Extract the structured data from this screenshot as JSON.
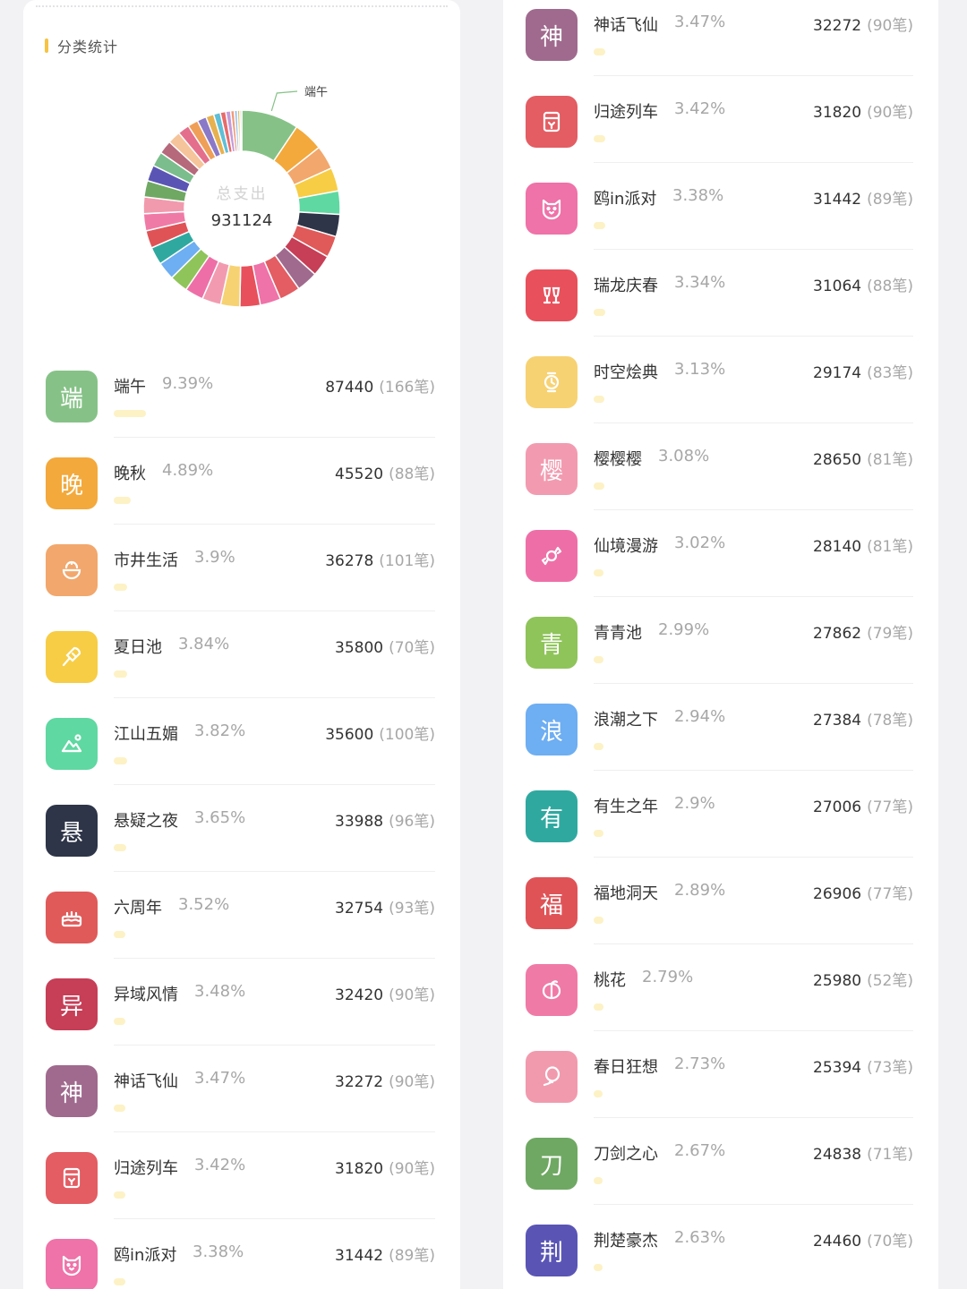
{
  "header": {
    "title": "分类统计",
    "accent_color": "#f6c343"
  },
  "donut": {
    "center_label": "总支出",
    "center_value": "931124",
    "callout_label": "端午"
  },
  "chart_data": {
    "type": "pie",
    "title": "",
    "total": 931124,
    "slices": [
      {
        "name": "端午",
        "pct": 9.39,
        "color": "#86c287"
      },
      {
        "name": "晚秋",
        "pct": 4.89,
        "color": "#f3a93b"
      },
      {
        "name": "市井生活",
        "pct": 3.9,
        "color": "#f2a76c"
      },
      {
        "name": "夏日池",
        "pct": 3.84,
        "color": "#f7cd45"
      },
      {
        "name": "江山五媚",
        "pct": 3.82,
        "color": "#5fd8a2"
      },
      {
        "name": "悬疑之夜",
        "pct": 3.65,
        "color": "#2e3548"
      },
      {
        "name": "六周年",
        "pct": 3.52,
        "color": "#e05a5a"
      },
      {
        "name": "异域风情",
        "pct": 3.48,
        "color": "#c73e57"
      },
      {
        "name": "神话飞仙",
        "pct": 3.47,
        "color": "#a06a8e"
      },
      {
        "name": "归途列车",
        "pct": 3.42,
        "color": "#e35d63"
      },
      {
        "name": "鸥in派对",
        "pct": 3.38,
        "color": "#ef72a8"
      },
      {
        "name": "瑞龙庆春",
        "pct": 3.34,
        "color": "#e8505b"
      },
      {
        "name": "时空烩典",
        "pct": 3.13,
        "color": "#f7d273"
      },
      {
        "name": "樱樱樱",
        "pct": 3.08,
        "color": "#f29bb0"
      },
      {
        "name": "仙境漫游",
        "pct": 3.02,
        "color": "#ee6fa7"
      },
      {
        "name": "青青池",
        "pct": 2.99,
        "color": "#8fc45a"
      },
      {
        "name": "浪潮之下",
        "pct": 2.94,
        "color": "#6eaef2"
      },
      {
        "name": "有生之年",
        "pct": 2.9,
        "color": "#2fa9a0"
      },
      {
        "name": "福地洞天",
        "pct": 2.89,
        "color": "#df5357"
      },
      {
        "name": "桃花",
        "pct": 2.79,
        "color": "#f07aa6"
      },
      {
        "name": "春日狂想",
        "pct": 2.73,
        "color": "#f19aae"
      },
      {
        "name": "刀剑之心",
        "pct": 2.67,
        "color": "#6fa863"
      },
      {
        "name": "荆楚豪杰",
        "pct": 2.63,
        "color": "#5a55b5"
      },
      {
        "name": "",
        "pct": 2.4,
        "color": "#7bbd8c"
      },
      {
        "name": "",
        "pct": 2.2,
        "color": "#b6697b"
      },
      {
        "name": "",
        "pct": 2.1,
        "color": "#f6c49a"
      },
      {
        "name": "",
        "pct": 1.9,
        "color": "#e46f8c"
      },
      {
        "name": "",
        "pct": 1.7,
        "color": "#ef9f58"
      },
      {
        "name": "",
        "pct": 1.5,
        "color": "#8a78c8"
      },
      {
        "name": "",
        "pct": 1.3,
        "color": "#e7b14f"
      },
      {
        "name": "",
        "pct": 1.1,
        "color": "#5fbfd6"
      },
      {
        "name": "",
        "pct": 0.9,
        "color": "#e86b6b"
      },
      {
        "name": "",
        "pct": 0.8,
        "color": "#c59bd8"
      },
      {
        "name": "",
        "pct": 0.6,
        "color": "#f29a78"
      },
      {
        "name": "",
        "pct": 0.5,
        "color": "#9ac2ea"
      },
      {
        "name": "",
        "pct": 0.4,
        "color": "#d7c05a"
      },
      {
        "name": "",
        "pct": 0.3,
        "color": "#c4c4c4"
      }
    ]
  },
  "left_list": [
    {
      "name": "端午",
      "pct": "9.39%",
      "amount": "87440",
      "count": "(166笔)",
      "icon": "char",
      "char": "端",
      "color": "#86c287",
      "bar": 0.0939
    },
    {
      "name": "晚秋",
      "pct": "4.89%",
      "amount": "45520",
      "count": "(88笔)",
      "icon": "char",
      "char": "晚",
      "color": "#f3a93b",
      "bar": 0.0489
    },
    {
      "name": "市井生活",
      "pct": "3.9%",
      "amount": "36278",
      "count": "(101笔)",
      "icon": "bowl-icon",
      "char": "",
      "color": "#f2a76c",
      "bar": 0.039
    },
    {
      "name": "夏日池",
      "pct": "3.84%",
      "amount": "35800",
      "count": "(70笔)",
      "icon": "popsicle-icon",
      "char": "",
      "color": "#f7cd45",
      "bar": 0.0384
    },
    {
      "name": "江山五媚",
      "pct": "3.82%",
      "amount": "35600",
      "count": "(100笔)",
      "icon": "landscape-icon",
      "char": "",
      "color": "#5fd8a2",
      "bar": 0.0382
    },
    {
      "name": "悬疑之夜",
      "pct": "3.65%",
      "amount": "33988",
      "count": "(96笔)",
      "icon": "char",
      "char": "悬",
      "color": "#2e3548",
      "bar": 0.0365
    },
    {
      "name": "六周年",
      "pct": "3.52%",
      "amount": "32754",
      "count": "(93笔)",
      "icon": "cake-icon",
      "char": "",
      "color": "#e05a5a",
      "bar": 0.0352
    },
    {
      "name": "异域风情",
      "pct": "3.48%",
      "amount": "32420",
      "count": "(90笔)",
      "icon": "char",
      "char": "异",
      "color": "#c73e57",
      "bar": 0.0348
    },
    {
      "name": "神话飞仙",
      "pct": "3.47%",
      "amount": "32272",
      "count": "(90笔)",
      "icon": "char",
      "char": "神",
      "color": "#a06a8e",
      "bar": 0.0347
    },
    {
      "name": "归途列车",
      "pct": "3.42%",
      "amount": "31820",
      "count": "(90笔)",
      "icon": "wallet-icon",
      "char": "",
      "color": "#e35d63",
      "bar": 0.0342
    },
    {
      "name": "鸥in派对",
      "pct": "3.38%",
      "amount": "31442",
      "count": "(89笔)",
      "icon": "cat-icon",
      "char": "",
      "color": "#ef72a8",
      "bar": 0.0338
    }
  ],
  "right_list": [
    {
      "name": "神话飞仙",
      "pct": "3.47%",
      "amount": "32272",
      "count": "(90笔)",
      "icon": "char",
      "char": "神",
      "color": "#a06a8e",
      "bar": 0.0347
    },
    {
      "name": "归途列车",
      "pct": "3.42%",
      "amount": "31820",
      "count": "(90笔)",
      "icon": "wallet-icon",
      "char": "",
      "color": "#e35d63",
      "bar": 0.0342
    },
    {
      "name": "鸥in派对",
      "pct": "3.38%",
      "amount": "31442",
      "count": "(89笔)",
      "icon": "cat-icon",
      "char": "",
      "color": "#ef72a8",
      "bar": 0.0338
    },
    {
      "name": "瑞龙庆春",
      "pct": "3.34%",
      "amount": "31064",
      "count": "(88笔)",
      "icon": "cheers-icon",
      "char": "",
      "color": "#e8505b",
      "bar": 0.0334
    },
    {
      "name": "时空烩典",
      "pct": "3.13%",
      "amount": "29174",
      "count": "(83笔)",
      "icon": "watch-icon",
      "char": "",
      "color": "#f7d273",
      "bar": 0.0313
    },
    {
      "name": "樱樱樱",
      "pct": "3.08%",
      "amount": "28650",
      "count": "(81笔)",
      "icon": "char",
      "char": "樱",
      "color": "#f29bb0",
      "bar": 0.0308
    },
    {
      "name": "仙境漫游",
      "pct": "3.02%",
      "amount": "28140",
      "count": "(81笔)",
      "icon": "candy-icon",
      "char": "",
      "color": "#ee6fa7",
      "bar": 0.0302
    },
    {
      "name": "青青池",
      "pct": "2.99%",
      "amount": "27862",
      "count": "(79笔)",
      "icon": "char",
      "char": "青",
      "color": "#8fc45a",
      "bar": 0.0299
    },
    {
      "name": "浪潮之下",
      "pct": "2.94%",
      "amount": "27384",
      "count": "(78笔)",
      "icon": "char",
      "char": "浪",
      "color": "#6eaef2",
      "bar": 0.0294
    },
    {
      "name": "有生之年",
      "pct": "2.9%",
      "amount": "27006",
      "count": "(77笔)",
      "icon": "char",
      "char": "有",
      "color": "#2fa9a0",
      "bar": 0.029
    },
    {
      "name": "福地洞天",
      "pct": "2.89%",
      "amount": "26906",
      "count": "(77笔)",
      "icon": "char",
      "char": "福",
      "color": "#df5357",
      "bar": 0.0289
    },
    {
      "name": "桃花",
      "pct": "2.79%",
      "amount": "25980",
      "count": "(52笔)",
      "icon": "peach-icon",
      "char": "",
      "color": "#f07aa6",
      "bar": 0.0279
    },
    {
      "name": "春日狂想",
      "pct": "2.73%",
      "amount": "25394",
      "count": "(73笔)",
      "icon": "balloon-icon",
      "char": "",
      "color": "#f19aae",
      "bar": 0.0273
    },
    {
      "name": "刀剑之心",
      "pct": "2.67%",
      "amount": "24838",
      "count": "(71笔)",
      "icon": "char",
      "char": "刀",
      "color": "#6fa863",
      "bar": 0.0267
    },
    {
      "name": "荆楚豪杰",
      "pct": "2.63%",
      "amount": "24460",
      "count": "(70笔)",
      "icon": "char",
      "char": "荆",
      "color": "#5a55b5",
      "bar": 0.0263
    }
  ]
}
